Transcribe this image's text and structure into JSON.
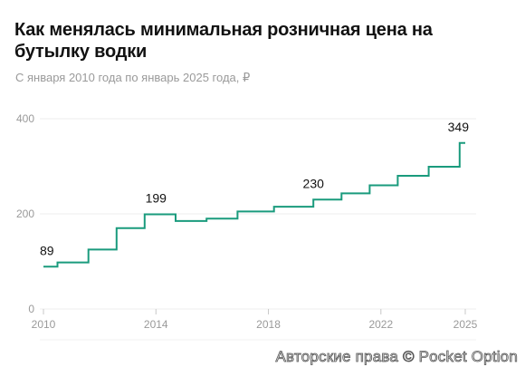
{
  "page": {
    "title": "Как менялась минимальная розничная цена на бутылку водки",
    "subtitle": "С января 2010 года по январь 2025 года, ₽",
    "watermark": "Авторские права © Pocket Option"
  },
  "chart_data": {
    "type": "line",
    "title": "Как менялась минимальная розничная цена на бутылку водки",
    "subtitle": "С января 2010 года по январь 2025 года, ₽",
    "xlabel": "",
    "ylabel": "",
    "xlim": [
      2010,
      2025
    ],
    "ylim": [
      0,
      400
    ],
    "x_ticks": [
      2010,
      2014,
      2018,
      2022,
      2025
    ],
    "y_ticks": [
      0,
      200,
      400
    ],
    "grid": "horizontal",
    "line_color": "#1a9b7d",
    "step": true,
    "series": [
      {
        "name": "",
        "x": [
          2010,
          2010.5,
          2011.6,
          2012.6,
          2013.6,
          2014.7,
          2015.8,
          2016.9,
          2018.2,
          2019.6,
          2020.6,
          2021.6,
          2022.6,
          2023.7,
          2024.8
        ],
        "y": [
          89,
          98,
          125,
          170,
          199,
          185,
          190,
          205,
          215,
          230,
          243,
          260,
          280,
          299,
          349
        ]
      }
    ],
    "x_end": 2025,
    "data_labels": [
      {
        "x": 2010,
        "y": 89,
        "text": "89"
      },
      {
        "x": 2014,
        "y": 199,
        "text": "199"
      },
      {
        "x": 2019.6,
        "y": 230,
        "text": "230"
      },
      {
        "x": 2025,
        "y": 349,
        "text": "349"
      }
    ]
  }
}
